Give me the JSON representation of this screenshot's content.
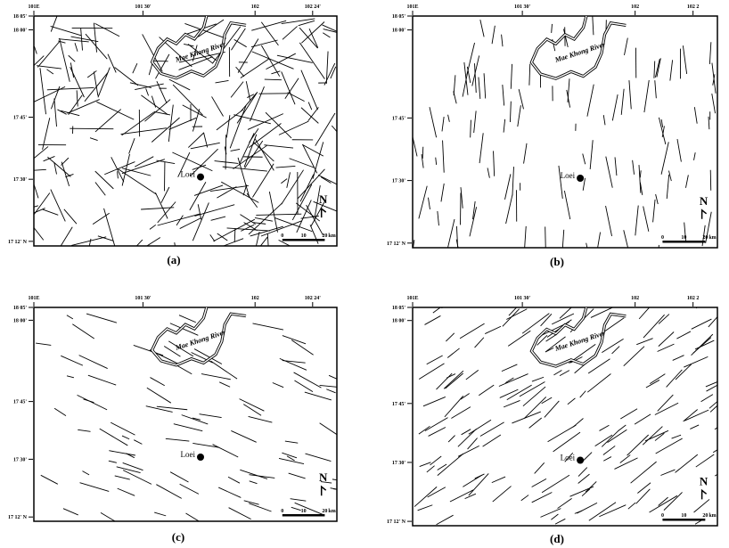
{
  "panels": [
    {
      "caption": "(a)",
      "lon_labels": [
        "101E",
        "101 30'",
        "102",
        "102 24'"
      ],
      "lat_labels": [
        "18 05'",
        "18 00'",
        "17 45'",
        "17 30'",
        "17 12' N"
      ],
      "river": "Mae Khong River",
      "city": "Loei",
      "north": "N",
      "scale_labels": [
        "0",
        "10",
        "20",
        "km"
      ]
    },
    {
      "caption": "(b)",
      "lon_labels": [
        "101E",
        "101 30'",
        "102",
        "102 2"
      ],
      "lat_labels": [
        "18 05'",
        "18 00'",
        "17 45'",
        "17 30'",
        "17 12' N"
      ],
      "river": "Mae Khong River",
      "city": "Loei",
      "north": "N",
      "scale_labels": [
        "0",
        "10",
        "20",
        "km"
      ]
    },
    {
      "caption": "(c)",
      "lon_labels": [
        "101E",
        "101 30'",
        "102",
        "102 24'"
      ],
      "lat_labels": [
        "18 05'",
        "18 00'",
        "17 45'",
        "17 30'",
        "17 12' N"
      ],
      "river": "Mae Khong River",
      "city": "Loei",
      "north": "N",
      "scale_labels": [
        "0",
        "10",
        "20",
        "km"
      ]
    },
    {
      "caption": "(d)",
      "lon_labels": [
        "101E",
        "101 30'",
        "102",
        "102 2"
      ],
      "lat_labels": [
        "18 05'",
        "18 00'",
        "17 45'",
        "17 30'",
        "17 12' N"
      ],
      "river": "Mae Khong River",
      "city": "Loei",
      "north": "N",
      "scale_labels": [
        "0",
        "10",
        "20",
        "km"
      ]
    }
  ]
}
